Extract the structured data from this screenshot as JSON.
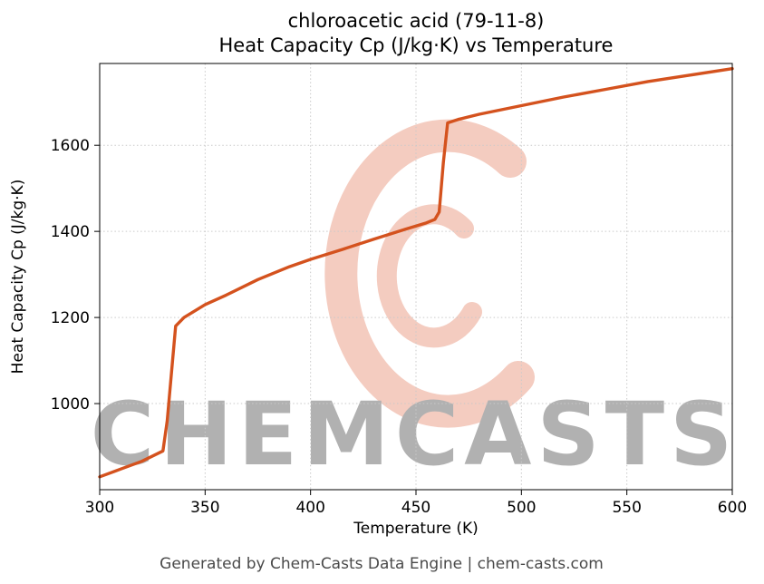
{
  "title_line1": "chloroacetic acid (79-11-8)",
  "title_line2": "Heat Capacity Cp (J/kg·K) vs Temperature",
  "footer": "Generated by Chem-Casts Data Engine | chem-casts.com",
  "watermark_text": "CHEMCASTS",
  "colors": {
    "line": "#d4521e",
    "watermark": "#dd5a33",
    "grid": "#c9c9c9",
    "footer_text": "#4a4a4a"
  },
  "chart_data": {
    "type": "line",
    "title": "chloroacetic acid (79-11-8) — Heat Capacity Cp (J/kg·K) vs Temperature",
    "xlabel": "Temperature (K)",
    "ylabel": "Heat Capacity Cp (J/kg·K)",
    "xlim": [
      300,
      600
    ],
    "ylim": [
      800,
      1790
    ],
    "xticks": [
      300,
      350,
      400,
      450,
      500,
      550,
      600
    ],
    "yticks": [
      1000,
      1200,
      1400,
      1600
    ],
    "grid": true,
    "legend": "none",
    "line_color": "#d4521e",
    "line_width": 3.4,
    "series": [
      {
        "name": "Heat Capacity Cp",
        "points": [
          [
            300,
            830
          ],
          [
            310,
            848
          ],
          [
            320,
            866
          ],
          [
            330,
            890
          ],
          [
            332,
            960
          ],
          [
            336,
            1180
          ],
          [
            340,
            1200
          ],
          [
            350,
            1230
          ],
          [
            360,
            1252
          ],
          [
            375,
            1288
          ],
          [
            390,
            1318
          ],
          [
            400,
            1335
          ],
          [
            415,
            1358
          ],
          [
            430,
            1382
          ],
          [
            445,
            1405
          ],
          [
            455,
            1420
          ],
          [
            459,
            1428
          ],
          [
            461,
            1445
          ],
          [
            463,
            1560
          ],
          [
            465,
            1652
          ],
          [
            470,
            1660
          ],
          [
            480,
            1672
          ],
          [
            500,
            1692
          ],
          [
            520,
            1712
          ],
          [
            540,
            1730
          ],
          [
            560,
            1748
          ],
          [
            580,
            1763
          ],
          [
            600,
            1778
          ]
        ]
      }
    ]
  }
}
